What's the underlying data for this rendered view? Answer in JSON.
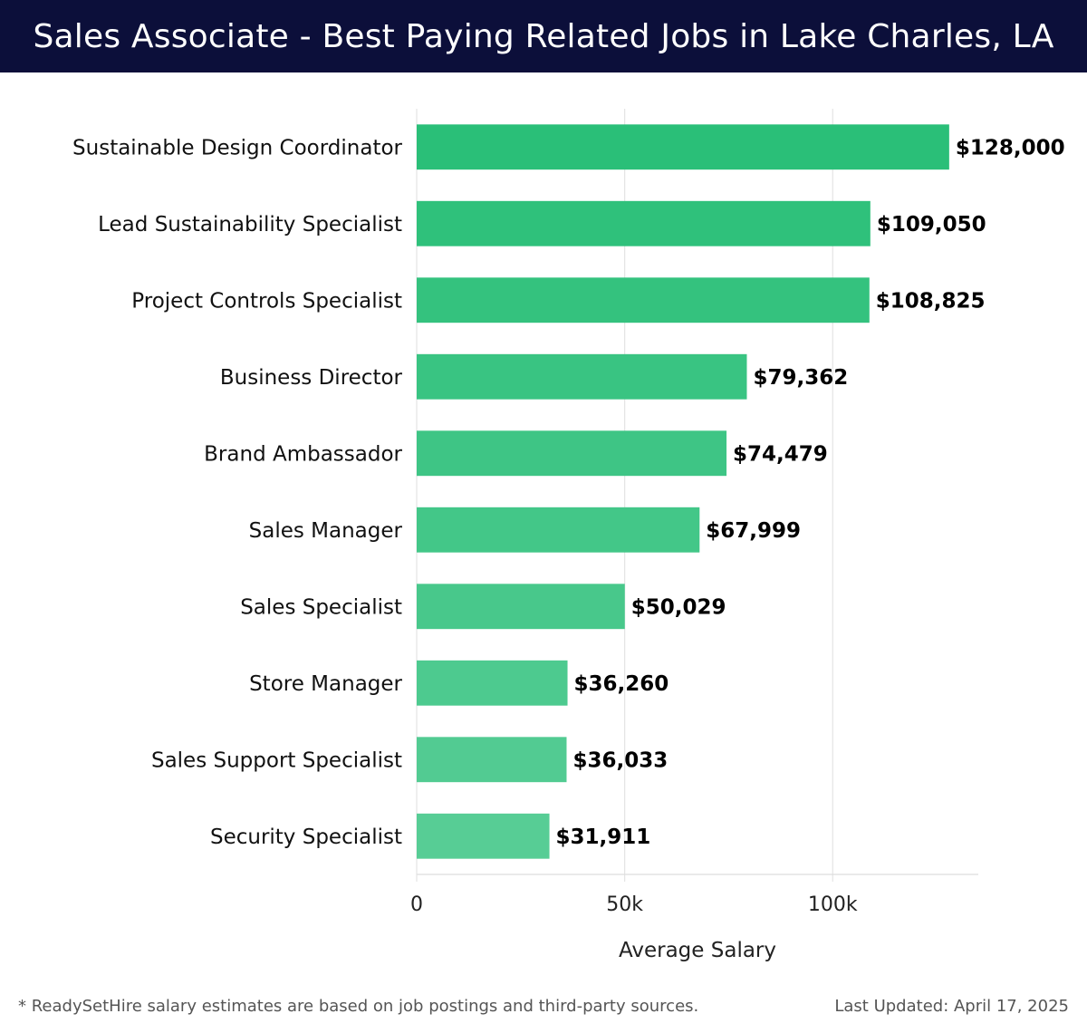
{
  "header": {
    "title": "Sales Associate - Best Paying Related Jobs in Lake Charles, LA"
  },
  "footer": {
    "note": "* ReadySetHire salary estimates are based on job postings and third-party sources.",
    "updated": "Last Updated: April 17, 2025"
  },
  "chart_data": {
    "type": "bar",
    "orientation": "horizontal",
    "title": "Sales Associate - Best Paying Related Jobs in Lake Charles, LA",
    "xlabel": "Average Salary",
    "ylabel": "",
    "categories": [
      "Sustainable Design Coordinator",
      "Lead Sustainability Specialist",
      "Project Controls Specialist",
      "Business Director",
      "Brand Ambassador",
      "Sales Manager",
      "Sales Specialist",
      "Store Manager",
      "Sales Support Specialist",
      "Security Specialist"
    ],
    "values": [
      128000,
      109050,
      108825,
      79362,
      74479,
      67999,
      50029,
      36260,
      36033,
      31911
    ],
    "value_labels": [
      "$128,000",
      "$109,050",
      "$108,825",
      "$79,362",
      "$74,479",
      "$67,999",
      "$50,029",
      "$36,260",
      "$36,033",
      "$31,911"
    ],
    "xlim": [
      0,
      135000
    ],
    "x_ticks": [
      0,
      50000,
      100000
    ],
    "x_tick_labels": [
      "0",
      "50k",
      "100k"
    ],
    "grid": "vertical",
    "bar_color_top": "#2abf78",
    "bar_color_bottom": "#57cd95",
    "gridline_color": "#e4e4e4"
  }
}
